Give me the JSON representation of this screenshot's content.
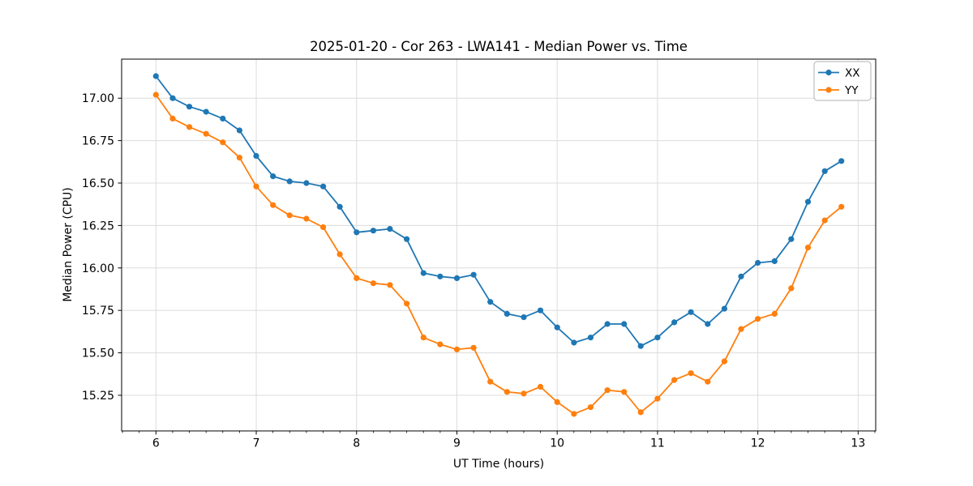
{
  "figure": {
    "title": "2025-01-20 - Cor 263 - LWA141 - Median Power vs. Time"
  },
  "chart_data": {
    "type": "line",
    "title": "2025-01-20 - Cor 263 - LWA141 - Median Power vs. Time",
    "xlabel": "UT Time (hours)",
    "ylabel": "Median Power (CPU)",
    "marker": "o",
    "grid": true,
    "legend_position": "upper right",
    "xlim": [
      5.658,
      13.175
    ],
    "ylim": [
      15.04,
      17.23
    ],
    "xticks": [
      6,
      7,
      8,
      9,
      10,
      11,
      12,
      13
    ],
    "xticklabels": [
      "6",
      "7",
      "8",
      "9",
      "10",
      "11",
      "12",
      "13"
    ],
    "x_minor_tick_step": 0.166667,
    "yticks": [
      15.25,
      15.5,
      15.75,
      16.0,
      16.25,
      16.5,
      16.75,
      17.0
    ],
    "yticklabels": [
      "15.25",
      "15.50",
      "15.75",
      "16.00",
      "16.25",
      "16.50",
      "16.75",
      "17.00"
    ],
    "x": [
      6.0,
      6.167,
      6.333,
      6.5,
      6.667,
      6.833,
      7.0,
      7.167,
      7.333,
      7.5,
      7.667,
      7.833,
      8.0,
      8.167,
      8.333,
      8.5,
      8.667,
      8.833,
      9.0,
      9.167,
      9.333,
      9.5,
      9.667,
      9.833,
      10.0,
      10.167,
      10.333,
      10.5,
      10.667,
      10.833,
      11.0,
      11.167,
      11.333,
      11.5,
      11.667,
      11.833,
      12.0,
      12.167,
      12.333,
      12.5,
      12.667,
      12.833
    ],
    "series": [
      {
        "name": "XX",
        "color": "#1f77b4",
        "values": [
          17.13,
          17.0,
          16.95,
          16.92,
          16.88,
          16.81,
          16.66,
          16.54,
          16.51,
          16.5,
          16.48,
          16.36,
          16.21,
          16.22,
          16.23,
          16.17,
          15.97,
          15.95,
          15.94,
          15.96,
          15.8,
          15.73,
          15.71,
          15.75,
          15.65,
          15.56,
          15.59,
          15.67,
          15.67,
          15.54,
          15.59,
          15.68,
          15.74,
          15.67,
          15.76,
          15.95,
          16.03,
          16.04,
          16.17,
          16.39,
          16.57,
          16.63
        ]
      },
      {
        "name": "YY",
        "color": "#ff7f0e",
        "values": [
          17.02,
          16.88,
          16.83,
          16.79,
          16.74,
          16.65,
          16.48,
          16.37,
          16.31,
          16.29,
          16.24,
          16.08,
          15.94,
          15.91,
          15.9,
          15.79,
          15.59,
          15.55,
          15.52,
          15.53,
          15.33,
          15.27,
          15.26,
          15.3,
          15.21,
          15.14,
          15.18,
          15.28,
          15.27,
          15.15,
          15.23,
          15.34,
          15.38,
          15.33,
          15.45,
          15.64,
          15.7,
          15.73,
          15.88,
          16.12,
          16.28,
          16.36
        ]
      }
    ],
    "legend": [
      "XX",
      "YY"
    ],
    "colors": {
      "grid": "#dcdcdc",
      "spine": "#000000",
      "background": "#ffffff",
      "legend_edge": "#b0b0b0"
    }
  }
}
